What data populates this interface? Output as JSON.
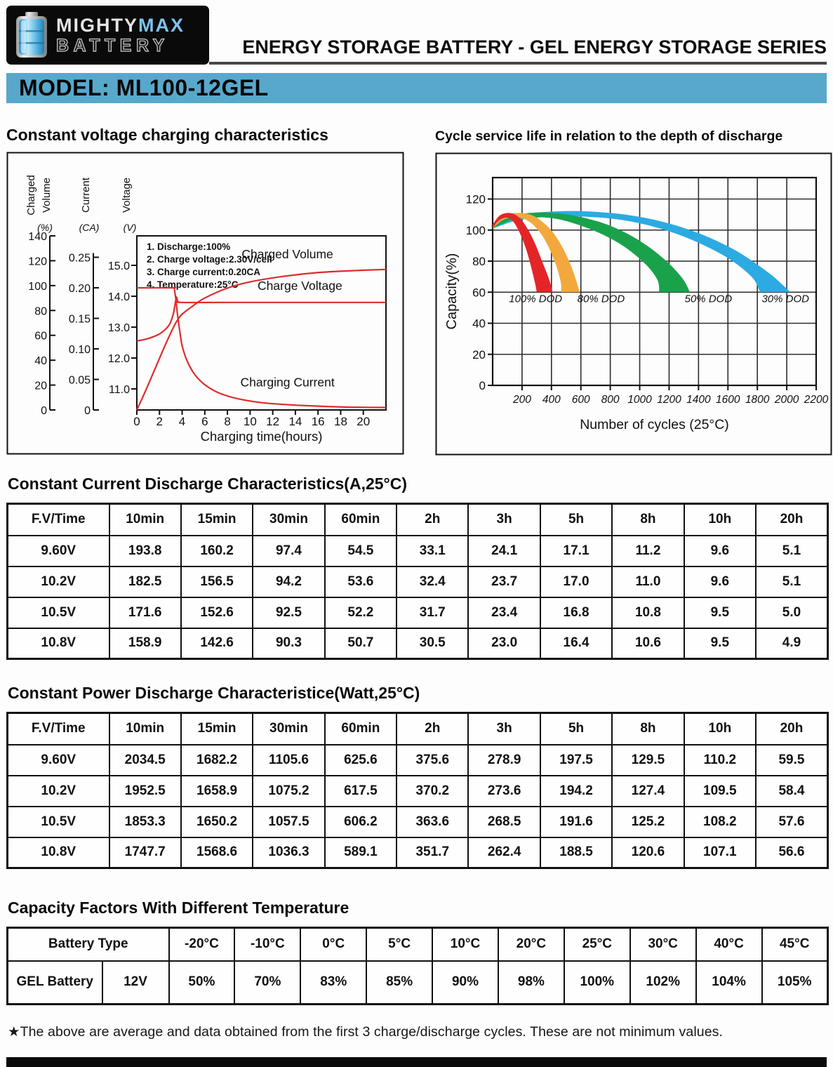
{
  "header": {
    "logo": {
      "mighty": "MIGHTY",
      "max": "MAX",
      "battery": "BATTERY"
    },
    "series_title": "ENERGY STORAGE BATTERY - GEL ENERGY STORAGE SERIES"
  },
  "model_banner": {
    "text": "MODEL: ML100-12GEL"
  },
  "chart_data": [
    {
      "type": "line",
      "title": "Constant voltage charging characteristics",
      "line_color": "#dd2c2c",
      "x_axis": {
        "label": "Charging time(hours)",
        "ticks": [
          0,
          2,
          4,
          6,
          8,
          10,
          12,
          14,
          16,
          18,
          20
        ],
        "range": [
          0,
          22
        ]
      },
      "y_axes": [
        {
          "name": "charged_volume",
          "label_lines": [
            "Charged",
            "Volume"
          ],
          "unit": "(%)",
          "ticks": [
            0,
            20,
            40,
            60,
            80,
            100,
            120,
            140
          ],
          "tick_labels": [
            "0",
            "20",
            "40",
            "60",
            "80",
            "100",
            "120",
            "140"
          ],
          "range": [
            0,
            140
          ]
        },
        {
          "name": "current",
          "label_lines": [
            "Current"
          ],
          "unit": "(CA)",
          "ticks": [
            0,
            0.05,
            0.1,
            0.15,
            0.2,
            0.25
          ],
          "tick_labels": [
            "0",
            "0.05",
            "0.10",
            "0.15",
            "0.20",
            "0.25"
          ],
          "range": [
            0,
            0.25
          ]
        },
        {
          "name": "voltage",
          "label_lines": [
            "Voltage"
          ],
          "unit": "(V)",
          "ticks": [
            11.0,
            12.0,
            13.0,
            14.0,
            15.0
          ],
          "tick_labels": [
            "11.0",
            "12.0",
            "13.0",
            "14.0",
            "15.0"
          ],
          "range": [
            11,
            15
          ]
        }
      ],
      "notes": [
        "1. Discharge:100%",
        "2. Charge voltage:2.30V/cell",
        "3. Charge current:0.20CA",
        "4. Temperature:25°C"
      ],
      "series": [
        {
          "name": "Charged Volume",
          "axis": "charged_volume",
          "label_pos": [
            13.3,
            122
          ],
          "points": [
            [
              0,
              0
            ],
            [
              0.8,
              16
            ],
            [
              1.6,
              33
            ],
            [
              2.4,
              50
            ],
            [
              3.0,
              62
            ],
            [
              3.5,
              71
            ],
            [
              4,
              77
            ],
            [
              5,
              84
            ],
            [
              6,
              90
            ],
            [
              8,
              98
            ],
            [
              10,
              103
            ],
            [
              13,
              107.5
            ],
            [
              16,
              110.5
            ],
            [
              19,
              112
            ],
            [
              22,
              113
            ]
          ]
        },
        {
          "name": "Charge Voltage",
          "axis": "voltage",
          "label_pos": [
            14.4,
            14.2
          ],
          "points": [
            [
              0,
              12.55
            ],
            [
              0.7,
              12.6
            ],
            [
              1.4,
              12.68
            ],
            [
              2,
              12.78
            ],
            [
              2.5,
              12.92
            ],
            [
              2.9,
              13.1
            ],
            [
              3.2,
              13.4
            ],
            [
              3.38,
              13.75
            ],
            [
              3.5,
              13.97
            ],
            [
              3.62,
              13.84
            ],
            [
              4,
              13.8
            ],
            [
              8,
              13.8
            ],
            [
              14,
              13.8
            ],
            [
              22,
              13.8
            ]
          ]
        },
        {
          "name": "Charging Current",
          "axis": "current",
          "label_pos": [
            13.3,
            0.0385
          ],
          "points": [
            [
              0,
              0.2
            ],
            [
              1.5,
              0.2
            ],
            [
              3.28,
              0.2
            ],
            [
              3.3,
              0.2
            ],
            [
              3.45,
              0.18
            ],
            [
              3.6,
              0.155
            ],
            [
              3.8,
              0.128
            ],
            [
              4,
              0.105
            ],
            [
              4.4,
              0.082
            ],
            [
              5,
              0.061
            ],
            [
              5.7,
              0.046
            ],
            [
              6.5,
              0.035
            ],
            [
              7.5,
              0.026
            ],
            [
              9,
              0.018
            ],
            [
              11,
              0.012
            ],
            [
              13,
              0.009
            ],
            [
              15,
              0.007
            ],
            [
              17,
              0.0055
            ],
            [
              19,
              0.0045
            ],
            [
              22,
              0.004
            ]
          ]
        }
      ]
    },
    {
      "type": "area-bands",
      "title": "Cycle service life in relation to the depth of discharge",
      "ylabel": "Capacity(%)",
      "xlabel": "Number of cycles (25°C)",
      "x_ticks": [
        200,
        400,
        600,
        800,
        1000,
        1200,
        1400,
        1600,
        1800,
        2000,
        2200
      ],
      "x_range": [
        0,
        2200
      ],
      "y_ticks": [
        0,
        20,
        40,
        60,
        80,
        100,
        120
      ],
      "y_range": [
        0,
        134
      ],
      "grid": true,
      "bands": [
        {
          "name": "100% DOD",
          "color": "#e42527",
          "label_x": 292,
          "label_y": 53.5,
          "top": [
            [
              0,
              103.5
            ],
            [
              50,
              109.5
            ],
            [
              115,
              111
            ],
            [
              175,
              108.5
            ],
            [
              230,
              102
            ],
            [
              285,
              92
            ],
            [
              340,
              79
            ],
            [
              385,
              68
            ],
            [
              408,
              60
            ]
          ],
          "bottom": [
            [
              0,
              101
            ],
            [
              40,
              106
            ],
            [
              95,
              108
            ],
            [
              140,
              105.5
            ],
            [
              185,
              98
            ],
            [
              230,
              87
            ],
            [
              265,
              75
            ],
            [
              290,
              65
            ],
            [
              300,
              60
            ]
          ]
        },
        {
          "name": "80% DOD",
          "color": "#f3a83e",
          "label_x": 737,
          "label_y": 53.5,
          "top": [
            [
              0,
              103.5
            ],
            [
              80,
              109.5
            ],
            [
              170,
              111
            ],
            [
              255,
              110
            ],
            [
              330,
              106
            ],
            [
              410,
              98.5
            ],
            [
              480,
              88
            ],
            [
              545,
              74
            ],
            [
              592,
              60
            ]
          ],
          "bottom": [
            [
              0,
              101
            ],
            [
              70,
              106.5
            ],
            [
              150,
              108.3
            ],
            [
              230,
              106.5
            ],
            [
              300,
              101
            ],
            [
              365,
              92
            ],
            [
              425,
              79
            ],
            [
              462,
              67
            ],
            [
              467,
              60
            ]
          ]
        },
        {
          "name": "50% DOD",
          "color": "#1aa24b",
          "label_x": 1467,
          "label_y": 53.5,
          "top": [
            [
              0,
              103.5
            ],
            [
              150,
              109.5
            ],
            [
              310,
              111.3
            ],
            [
              470,
              110.5
            ],
            [
              640,
              107.5
            ],
            [
              820,
              102
            ],
            [
              1010,
              92.5
            ],
            [
              1170,
              81
            ],
            [
              1290,
              69
            ],
            [
              1342,
              60
            ]
          ],
          "bottom": [
            [
              0,
              101
            ],
            [
              130,
              106.5
            ],
            [
              280,
              108.3
            ],
            [
              430,
              107.3
            ],
            [
              580,
              103.5
            ],
            [
              740,
              97.5
            ],
            [
              900,
              89
            ],
            [
              1040,
              78
            ],
            [
              1120,
              68
            ],
            [
              1133,
              60
            ]
          ]
        },
        {
          "name": "30% DOD",
          "color": "#2caae2",
          "label_x": 1991,
          "label_y": 53.5,
          "top": [
            [
              0,
              103.5
            ],
            [
              200,
              110
            ],
            [
              420,
              112
            ],
            [
              650,
              112
            ],
            [
              900,
              110
            ],
            [
              1150,
              105.5
            ],
            [
              1400,
              98
            ],
            [
              1650,
              87
            ],
            [
              1870,
              73
            ],
            [
              1980,
              64
            ],
            [
              2025,
              60
            ]
          ],
          "bottom": [
            [
              0,
              101
            ],
            [
              180,
              106.5
            ],
            [
              400,
              108.6
            ],
            [
              640,
              108.6
            ],
            [
              880,
              106.5
            ],
            [
              1120,
              101.5
            ],
            [
              1360,
              93.5
            ],
            [
              1600,
              82
            ],
            [
              1760,
              70
            ],
            [
              1810,
              62
            ],
            [
              1817,
              60
            ]
          ]
        }
      ]
    }
  ],
  "tables": [
    {
      "title": "Constant Current Discharge Characteristics(A,25°C)",
      "columns": [
        "F.V/Time",
        "10min",
        "15min",
        "30min",
        "60min",
        "2h",
        "3h",
        "5h",
        "8h",
        "10h",
        "20h"
      ],
      "rows": [
        [
          "9.60V",
          "193.8",
          "160.2",
          "97.4",
          "54.5",
          "33.1",
          "24.1",
          "17.1",
          "11.2",
          "9.6",
          "5.1"
        ],
        [
          "10.2V",
          "182.5",
          "156.5",
          "94.2",
          "53.6",
          "32.4",
          "23.7",
          "17.0",
          "11.0",
          "9.6",
          "5.1"
        ],
        [
          "10.5V",
          "171.6",
          "152.6",
          "92.5",
          "52.2",
          "31.7",
          "23.4",
          "16.8",
          "10.8",
          "9.5",
          "5.0"
        ],
        [
          "10.8V",
          "158.9",
          "142.6",
          "90.3",
          "50.7",
          "30.5",
          "23.0",
          "16.4",
          "10.6",
          "9.5",
          "4.9"
        ]
      ]
    },
    {
      "title": "Constant Power Discharge Characteristice(Watt,25°C)",
      "columns": [
        "F.V/Time",
        "10min",
        "15min",
        "30min",
        "60min",
        "2h",
        "3h",
        "5h",
        "8h",
        "10h",
        "20h"
      ],
      "rows": [
        [
          "9.60V",
          "2034.5",
          "1682.2",
          "1105.6",
          "625.6",
          "375.6",
          "278.9",
          "197.5",
          "129.5",
          "110.2",
          "59.5"
        ],
        [
          "10.2V",
          "1952.5",
          "1658.9",
          "1075.2",
          "617.5",
          "370.2",
          "273.6",
          "194.2",
          "127.4",
          "109.5",
          "58.4"
        ],
        [
          "10.5V",
          "1853.3",
          "1650.2",
          "1057.5",
          "606.2",
          "363.6",
          "268.5",
          "191.6",
          "125.2",
          "108.2",
          "57.6"
        ],
        [
          "10.8V",
          "1747.7",
          "1568.6",
          "1036.3",
          "589.1",
          "351.7",
          "262.4",
          "188.5",
          "120.6",
          "107.1",
          "56.6"
        ]
      ]
    },
    {
      "title": "Capacity Factors With Different Temperature",
      "battery_type_label": "Battery Type",
      "temp_columns": [
        "-20°C",
        "-10°C",
        "0°C",
        "5°C",
        "10°C",
        "20°C",
        "25°C",
        "30°C",
        "40°C",
        "45°C"
      ],
      "row": {
        "type": "GEL Battery",
        "voltage": "12V",
        "values": [
          "50%",
          "70%",
          "83%",
          "85%",
          "90%",
          "98%",
          "100%",
          "102%",
          "104%",
          "105%"
        ]
      }
    }
  ],
  "footnote": "★The above are average and data obtained from the first 3 charge/discharge cycles. These are not minimum values."
}
